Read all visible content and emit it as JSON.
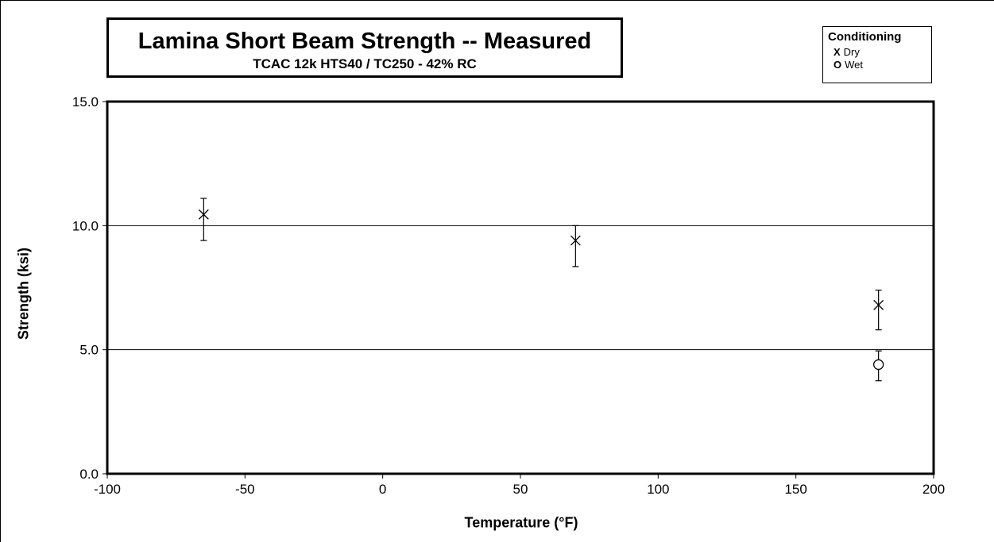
{
  "chart_data": {
    "type": "scatter",
    "title": "Lamina Short Beam Strength -- Measured",
    "subtitle": "TCAC 12k HTS40 / TC250 - 42% RC",
    "xlabel": "Temperature (°F)",
    "ylabel": "Strength (ksi)",
    "xlim": [
      -100,
      200
    ],
    "ylim": [
      0,
      15
    ],
    "x_ticks": [
      -100,
      -50,
      0,
      50,
      100,
      150,
      200
    ],
    "x_tick_labels": [
      "-100",
      "-50",
      "0",
      "50",
      "100",
      "150",
      "200"
    ],
    "y_ticks": [
      0,
      5,
      10,
      15
    ],
    "y_tick_labels": [
      "0.0",
      "5.0",
      "10.0",
      "15.0"
    ],
    "grid": "horizontal",
    "legend": {
      "title": "Conditioning",
      "placement": "top-right",
      "entries": [
        {
          "marker": "X",
          "label": "Dry"
        },
        {
          "marker": "O",
          "label": "Wet"
        }
      ]
    },
    "series": [
      {
        "name": "Dry",
        "marker": "x",
        "points": [
          {
            "x": -65,
            "y": 10.45,
            "err_low": 9.4,
            "err_high": 11.1
          },
          {
            "x": 70,
            "y": 9.4,
            "err_low": 8.35,
            "err_high": 10.0
          },
          {
            "x": 180,
            "y": 6.8,
            "err_low": 5.8,
            "err_high": 7.4
          }
        ]
      },
      {
        "name": "Wet",
        "marker": "o",
        "points": [
          {
            "x": 180,
            "y": 4.4,
            "err_low": 3.75,
            "err_high": 4.95
          }
        ]
      }
    ]
  }
}
